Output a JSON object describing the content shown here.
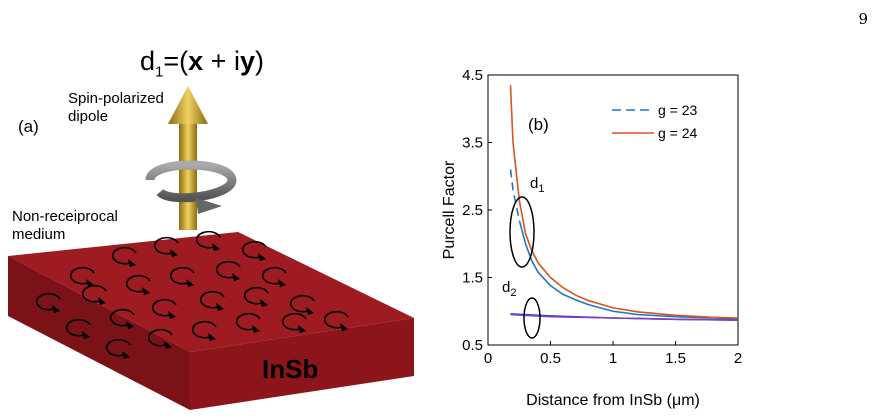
{
  "page_number": "9",
  "panel_a": {
    "label": "(a)",
    "formula_d": "d",
    "formula_sub": "1",
    "formula_eq": "=(",
    "formula_x": "x",
    "formula_plus": " + i",
    "formula_y": "y",
    "formula_close": ")",
    "spin_label_1": "Spin-polarized",
    "spin_label_2": "dipole",
    "medium_label_1": "Non-receiprocal",
    "medium_label_2": "medium",
    "material": "InSb",
    "colors": {
      "slab": "#9e1b22",
      "slab_side": "#7a1218",
      "arrow": "#c8a82a"
    }
  },
  "chart_data": {
    "type": "line",
    "panel_label": "(b)",
    "xlabel": "Distance from InSb (μm)",
    "ylabel": "Purcell Factor",
    "xlim": [
      0,
      2
    ],
    "ylim": [
      0.5,
      4.5
    ],
    "xticks": [
      "0",
      "0.5",
      "1",
      "1.5",
      "2"
    ],
    "yticks": [
      "0.5",
      "1.5",
      "2.5",
      "3.5",
      "4.5"
    ],
    "legend_position": "top-right",
    "annotations": [
      "d1",
      "d2"
    ],
    "series": [
      {
        "name": "g = 23",
        "color": "#1f77c4",
        "dash": "dash-then-solid",
        "x": [
          0.18,
          0.2,
          0.25,
          0.3,
          0.35,
          0.4,
          0.5,
          0.6,
          0.7,
          0.8,
          1.0,
          1.2,
          1.5,
          1.8,
          2.0
        ],
        "y": [
          3.1,
          2.8,
          2.35,
          2.0,
          1.75,
          1.58,
          1.38,
          1.25,
          1.17,
          1.1,
          1.0,
          0.95,
          0.92,
          0.9,
          0.89
        ]
      },
      {
        "name": "g = 24",
        "color": "#d9541e",
        "dash": "solid",
        "x": [
          0.18,
          0.2,
          0.25,
          0.3,
          0.35,
          0.4,
          0.5,
          0.6,
          0.7,
          0.8,
          1.0,
          1.2,
          1.5,
          1.8,
          2.0
        ],
        "y": [
          4.35,
          3.5,
          2.65,
          2.15,
          1.9,
          1.72,
          1.5,
          1.35,
          1.24,
          1.16,
          1.05,
          0.99,
          0.94,
          0.91,
          0.9
        ]
      },
      {
        "name": "",
        "color": "#1a3bd6",
        "dash": "solid",
        "x": [
          0.18,
          0.5,
          1.0,
          1.5,
          2.0
        ],
        "y": [
          0.96,
          0.93,
          0.9,
          0.88,
          0.87
        ]
      },
      {
        "name": "",
        "color": "#8040c0",
        "dash": "solid",
        "x": [
          0.18,
          0.5,
          1.0,
          1.5,
          2.0
        ],
        "y": [
          0.95,
          0.92,
          0.9,
          0.88,
          0.87
        ]
      }
    ]
  }
}
